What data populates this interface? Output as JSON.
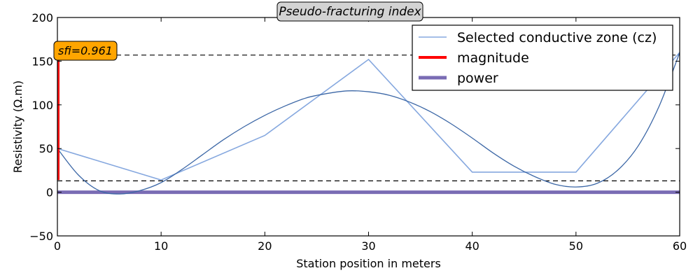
{
  "chart_data": {
    "type": "line",
    "title": "Pseudo-fracturing index",
    "xlabel": "Station position in meters",
    "ylabel": "Resistivity (Ω.m)",
    "xlim": [
      0,
      60
    ],
    "ylim": [
      -50,
      200
    ],
    "xticks": [
      0,
      10,
      20,
      30,
      40,
      50,
      60
    ],
    "yticks": [
      -50,
      0,
      50,
      100,
      150,
      200
    ],
    "grid": false,
    "legend_position": "top-right",
    "colors": {
      "selected_zone": "#86a8df",
      "fit_curve": "#3c67a6",
      "magnitude": "#ff0000",
      "power": "#7a6cb4",
      "annotation_fill": "#ffa500",
      "title_box_fill": "#d3d3d3"
    },
    "series": [
      {
        "name": "Selected conductive zone (cz)",
        "x": [
          0,
          10,
          20,
          30,
          40,
          50,
          60
        ],
        "y": [
          50,
          14,
          65,
          152,
          23,
          23,
          160
        ]
      },
      {
        "name": "magnitude",
        "x": [
          0,
          0
        ],
        "y": [
          14,
          157
        ]
      },
      {
        "name": "power",
        "x": [
          0,
          60
        ],
        "y": [
          0,
          0
        ]
      }
    ],
    "fit_curve": {
      "x": [
        0,
        2,
        4,
        6,
        8,
        10,
        12,
        14,
        16,
        18,
        20,
        22,
        24,
        26,
        28,
        30,
        32,
        34,
        36,
        38,
        40,
        42,
        44,
        46,
        48,
        50,
        52,
        54,
        56,
        58,
        60
      ],
      "y": [
        50,
        20,
        2,
        -2,
        2,
        11,
        26,
        43,
        60,
        75,
        88,
        99,
        108,
        113,
        116,
        115,
        111,
        103,
        92,
        78,
        62,
        45,
        30,
        18,
        9,
        6,
        10,
        25,
        53,
        98,
        160
      ]
    },
    "hlines": [
      157,
      13
    ],
    "annotation": {
      "text": "sfi=0.961",
      "x": 0,
      "y": 162
    }
  }
}
